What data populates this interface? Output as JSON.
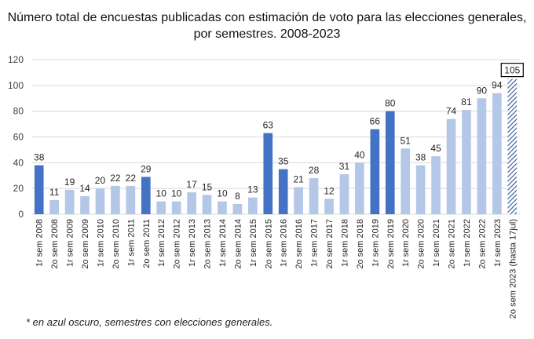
{
  "chart_data": {
    "type": "bar",
    "title": "Número total de encuestas publicadas con estimación de voto para las elecciones generales, por semestres. 2008-2023",
    "xlabel": "",
    "ylabel": "",
    "ylim": [
      0,
      120
    ],
    "yticks": [
      0,
      20,
      40,
      60,
      80,
      100,
      120
    ],
    "grid": true,
    "legend": "none",
    "categories": [
      "1r sem 2008",
      "2o sem 2008",
      "1r sem 2009",
      "2o sem 2009",
      "1r sem 2010",
      "2o sem 2010",
      "1r sem 2011",
      "2o sem 2011",
      "1r sem 2012",
      "2o sem 2012",
      "1r sem 2013",
      "2o sem 2013",
      "1r sem 2014",
      "2o sem 2014",
      "1r sem 2015",
      "2o sem 2015",
      "1r sem 2016",
      "2o sem 2016",
      "1r sem 2017",
      "2o sem 2017",
      "1r sem 2018",
      "2o sem 2018",
      "1r sem 2019",
      "2o sem 2019",
      "1r sem 2020",
      "2o sem 2020",
      "1r sem 2021",
      "2o sem 2021",
      "1r sem 2022",
      "2o sem 2022",
      "1r sem 2023",
      "2o sem 2023 (hasta 17jul)"
    ],
    "values": [
      38,
      11,
      19,
      14,
      20,
      22,
      22,
      29,
      10,
      10,
      17,
      15,
      10,
      8,
      13,
      63,
      35,
      21,
      28,
      12,
      31,
      40,
      66,
      80,
      51,
      38,
      45,
      74,
      81,
      90,
      94,
      105
    ],
    "election_semesters": [
      "1r sem 2008",
      "2o sem 2011",
      "2o sem 2015",
      "1r sem 2016",
      "1r sem 2019",
      "2o sem 2019"
    ],
    "partial_semester": "2o sem 2023 (hasta 17jul)",
    "boxed_label": "105",
    "colors": {
      "election": "#4472C4",
      "normal": "#B4C7E7",
      "partial_hatch": "#2F5597",
      "grid": "#D9D9D9"
    },
    "footnote": "* en azul oscuro, semestres con elecciones generales."
  }
}
